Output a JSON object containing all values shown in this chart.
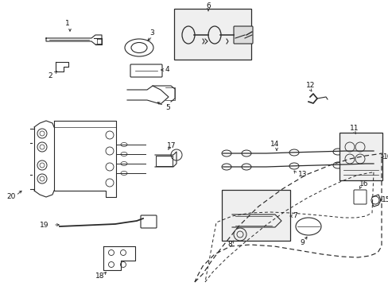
{
  "bg_color": "#ffffff",
  "line_color": "#2a2a2a",
  "figsize": [
    4.89,
    3.6
  ],
  "dpi": 100
}
